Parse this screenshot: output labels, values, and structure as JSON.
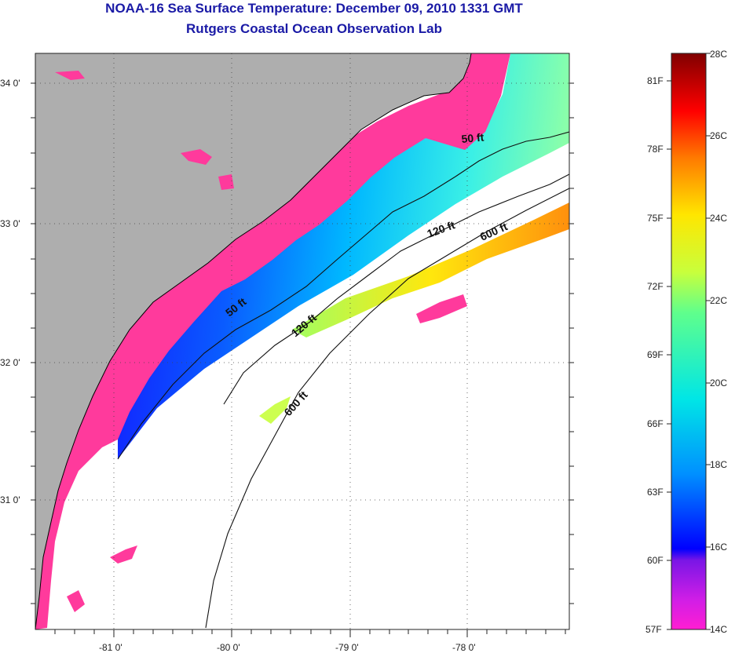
{
  "title": "NOAA-16 Sea Surface Temperature:  December 09, 2010 1331 GMT",
  "subtitle": "Rutgers Coastal Ocean Observation Lab",
  "map": {
    "lon_ticks": [
      {
        "value": -81,
        "label": "-81 0'"
      },
      {
        "value": -80,
        "label": "-80 0'"
      },
      {
        "value": -79,
        "label": "-79 0'"
      },
      {
        "value": -78,
        "label": "-78 0'"
      }
    ],
    "lat_ticks": [
      {
        "value": 34,
        "label": "34 0'"
      },
      {
        "value": 33,
        "label": "33 0'"
      },
      {
        "value": 32,
        "label": "32 0'"
      },
      {
        "value": 31,
        "label": "31 0'"
      }
    ],
    "contour_labels": [
      {
        "text": "50 ft",
        "depth_ft": 50
      },
      {
        "text": "50 ft",
        "depth_ft": 50
      },
      {
        "text": "120 ft",
        "depth_ft": 120
      },
      {
        "text": "120 ft",
        "depth_ft": 120
      },
      {
        "text": "600 ft",
        "depth_ft": 600
      },
      {
        "text": "600 ft",
        "depth_ft": 600
      }
    ],
    "colors": {
      "land": "#aeaeae",
      "no_data": "#ffffff",
      "coastal_cold": "#ff3a9c"
    }
  },
  "colorbar": {
    "min_c": 14,
    "max_c": 28,
    "celsius_labels": [
      "28C",
      "26C",
      "24C",
      "22C",
      "20C",
      "18C",
      "16C",
      "14C"
    ],
    "fahrenheit_labels": [
      "81F",
      "78F",
      "75F",
      "72F",
      "69F",
      "66F",
      "63F",
      "60F",
      "57F"
    ]
  }
}
